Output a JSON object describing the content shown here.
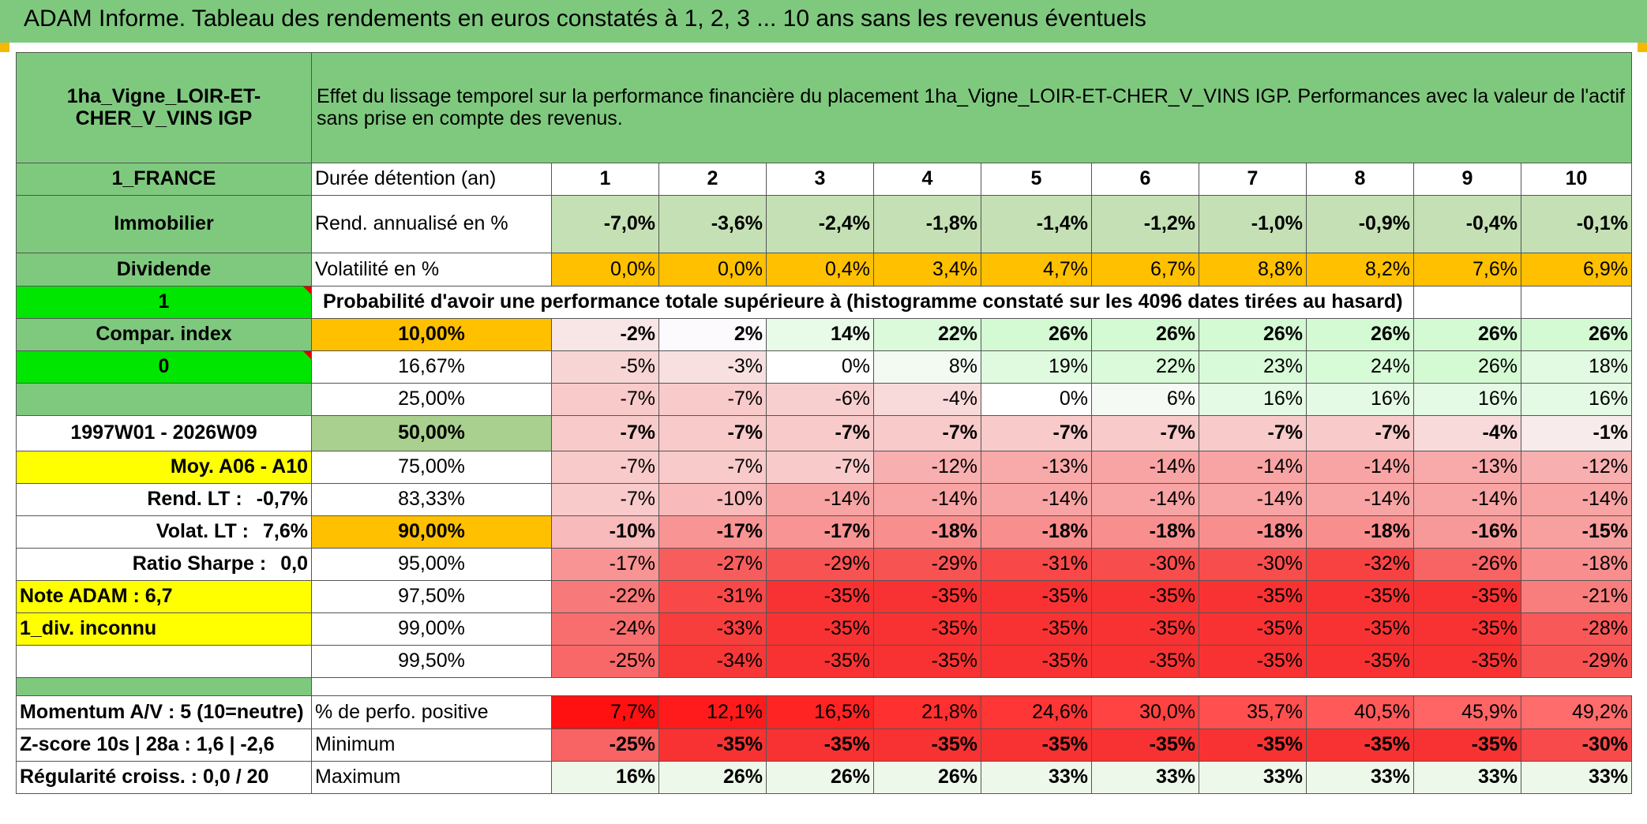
{
  "title": "ADAM Informe. Tableau des rendements en euros constatés à 1, 2, 3 ... 10 ans sans les revenus éventuels",
  "asset_name": "1ha_Vigne_LOIR-ET-CHER_V_VINS IGP",
  "description": "Effet du lissage temporel sur la performance financière du placement 1ha_Vigne_LOIR-ET-CHER_V_VINS IGP. Performances avec la valeur de l'actif sans prise en compte des revenus.",
  "left_labels": {
    "country": "1_FRANCE",
    "category": "Immobilier",
    "income_type": "Dividende",
    "flag1": "1",
    "compar_index": "Compar. index",
    "flag2": "0",
    "period": "1997W01 - 2026W09",
    "moy": "Moy. A06 - A10",
    "rend_lt_label": "Rend. LT :",
    "rend_lt_value": "-0,7%",
    "volat_lt_label": "Volat. LT :",
    "volat_lt_value": "7,6%",
    "sharpe_label": "Ratio Sharpe :",
    "sharpe_value": "0,0",
    "note": "Note ADAM : 6,7",
    "div": "1_div. inconnu",
    "momentum": "Momentum A/V : 5 (10=neutre)",
    "zscore": "Z-score 10s | 28a : 1,6 | -2,6",
    "regularite": "Régularité croiss. : 0,0 / 20"
  },
  "row_labels": {
    "duree": "Durée détention (an)",
    "rend": "Rend. annualisé en %",
    "vol": "Volatilité en %",
    "proba": "Probabilité d'avoir une performance totale supérieure à (histogramme constaté sur les 4096 dates tirées au hasard)",
    "perfo_pos": "% de perfo. positive",
    "minimum": "Minimum",
    "maximum": "Maximum"
  },
  "years": [
    "1",
    "2",
    "3",
    "4",
    "5",
    "6",
    "7",
    "8",
    "9",
    "10"
  ],
  "rend": [
    "-7,0%",
    "-3,6%",
    "-2,4%",
    "-1,8%",
    "-1,4%",
    "-1,2%",
    "-1,0%",
    "-0,9%",
    "-0,4%",
    "-0,1%"
  ],
  "vol": [
    "0,0%",
    "0,0%",
    "0,4%",
    "3,4%",
    "4,7%",
    "6,7%",
    "8,8%",
    "8,2%",
    "7,6%",
    "6,9%"
  ],
  "proba_rows": [
    {
      "p": "10,00%",
      "v": [
        "-2%",
        "2%",
        "14%",
        "22%",
        "26%",
        "26%",
        "26%",
        "26%",
        "26%",
        "26%"
      ]
    },
    {
      "p": "16,67%",
      "v": [
        "-5%",
        "-3%",
        "0%",
        "8%",
        "19%",
        "22%",
        "23%",
        "24%",
        "26%",
        "18%"
      ]
    },
    {
      "p": "25,00%",
      "v": [
        "-7%",
        "-7%",
        "-6%",
        "-4%",
        "0%",
        "6%",
        "16%",
        "16%",
        "16%",
        "16%"
      ]
    },
    {
      "p": "50,00%",
      "v": [
        "-7%",
        "-7%",
        "-7%",
        "-7%",
        "-7%",
        "-7%",
        "-7%",
        "-7%",
        "-4%",
        "-1%"
      ]
    },
    {
      "p": "75,00%",
      "v": [
        "-7%",
        "-7%",
        "-7%",
        "-12%",
        "-13%",
        "-14%",
        "-14%",
        "-14%",
        "-13%",
        "-12%"
      ]
    },
    {
      "p": "83,33%",
      "v": [
        "-7%",
        "-10%",
        "-14%",
        "-14%",
        "-14%",
        "-14%",
        "-14%",
        "-14%",
        "-14%",
        "-14%"
      ]
    },
    {
      "p": "90,00%",
      "v": [
        "-10%",
        "-17%",
        "-17%",
        "-18%",
        "-18%",
        "-18%",
        "-18%",
        "-18%",
        "-16%",
        "-15%"
      ]
    },
    {
      "p": "95,00%",
      "v": [
        "-17%",
        "-27%",
        "-29%",
        "-29%",
        "-31%",
        "-30%",
        "-30%",
        "-32%",
        "-26%",
        "-18%"
      ]
    },
    {
      "p": "97,50%",
      "v": [
        "-22%",
        "-31%",
        "-35%",
        "-35%",
        "-35%",
        "-35%",
        "-35%",
        "-35%",
        "-35%",
        "-21%"
      ]
    },
    {
      "p": "99,00%",
      "v": [
        "-24%",
        "-33%",
        "-35%",
        "-35%",
        "-35%",
        "-35%",
        "-35%",
        "-35%",
        "-35%",
        "-28%"
      ]
    },
    {
      "p": "99,50%",
      "v": [
        "-25%",
        "-34%",
        "-35%",
        "-35%",
        "-35%",
        "-35%",
        "-35%",
        "-35%",
        "-35%",
        "-29%"
      ]
    }
  ],
  "perfo_pos": [
    "7,7%",
    "12,1%",
    "16,5%",
    "21,8%",
    "24,6%",
    "30,0%",
    "35,7%",
    "40,5%",
    "45,9%",
    "49,2%"
  ],
  "minimum": [
    "-25%",
    "-35%",
    "-35%",
    "-35%",
    "-35%",
    "-35%",
    "-35%",
    "-35%",
    "-35%",
    "-30%"
  ],
  "maximum": [
    "16%",
    "26%",
    "26%",
    "26%",
    "33%",
    "33%",
    "33%",
    "33%",
    "33%",
    "33%"
  ],
  "colors": {
    "header_green": "#7fc97f",
    "bright_green": "#00e600",
    "yellow": "#ffff00",
    "orange": "#ffc000",
    "rend_green": "#c4e0b4",
    "red_strong": "#ff0000"
  }
}
